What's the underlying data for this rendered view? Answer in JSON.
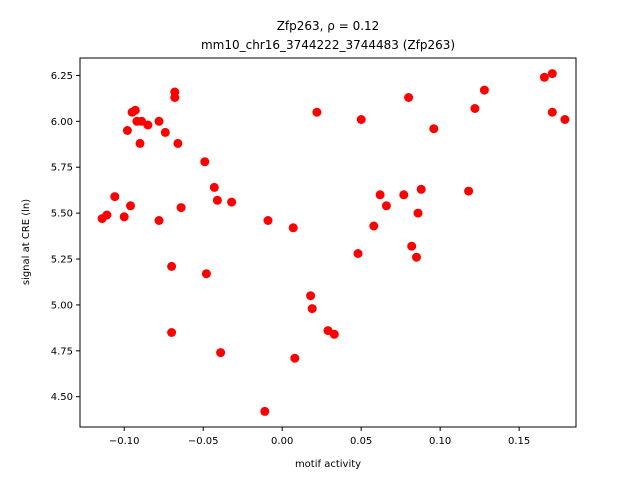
{
  "chart_data": {
    "type": "scatter",
    "title_line1": "Zfp263, ρ = 0.12",
    "title_line2": "mm10_chr16_3744222_3744483 (Zfp263)",
    "xlabel": "motif activity",
    "ylabel": "signal at CRE (ln)",
    "xlim": [
      -0.128,
      0.186
    ],
    "ylim": [
      4.335,
      6.345
    ],
    "xticks": [
      -0.1,
      -0.05,
      0.0,
      0.05,
      0.1,
      0.15
    ],
    "xtick_labels": [
      "−0.10",
      "−0.05",
      "0.00",
      "0.05",
      "0.10",
      "0.15"
    ],
    "yticks": [
      4.5,
      4.75,
      5.0,
      5.25,
      5.5,
      5.75,
      6.0,
      6.25
    ],
    "ytick_labels": [
      "4.50",
      "4.75",
      "5.00",
      "5.25",
      "5.50",
      "5.75",
      "6.00",
      "6.25"
    ],
    "grid": false,
    "marker_color": "#ff0000",
    "points": [
      {
        "x": -0.114,
        "y": 5.47
      },
      {
        "x": -0.111,
        "y": 5.49
      },
      {
        "x": -0.106,
        "y": 5.59
      },
      {
        "x": -0.1,
        "y": 5.48
      },
      {
        "x": -0.098,
        "y": 5.95
      },
      {
        "x": -0.096,
        "y": 5.54
      },
      {
        "x": -0.095,
        "y": 6.05
      },
      {
        "x": -0.093,
        "y": 6.06
      },
      {
        "x": -0.092,
        "y": 6.0
      },
      {
        "x": -0.09,
        "y": 5.88
      },
      {
        "x": -0.089,
        "y": 6.0
      },
      {
        "x": -0.085,
        "y": 5.98
      },
      {
        "x": -0.078,
        "y": 6.0
      },
      {
        "x": -0.078,
        "y": 5.46
      },
      {
        "x": -0.074,
        "y": 5.94
      },
      {
        "x": -0.07,
        "y": 5.21
      },
      {
        "x": -0.07,
        "y": 4.85
      },
      {
        "x": -0.068,
        "y": 6.16
      },
      {
        "x": -0.068,
        "y": 6.13
      },
      {
        "x": -0.066,
        "y": 5.88
      },
      {
        "x": -0.064,
        "y": 5.53
      },
      {
        "x": -0.049,
        "y": 5.78
      },
      {
        "x": -0.048,
        "y": 5.17
      },
      {
        "x": -0.043,
        "y": 5.64
      },
      {
        "x": -0.041,
        "y": 5.57
      },
      {
        "x": -0.039,
        "y": 4.74
      },
      {
        "x": -0.032,
        "y": 5.56
      },
      {
        "x": -0.011,
        "y": 4.42
      },
      {
        "x": -0.009,
        "y": 5.46
      },
      {
        "x": 0.007,
        "y": 5.42
      },
      {
        "x": 0.008,
        "y": 4.71
      },
      {
        "x": 0.018,
        "y": 5.05
      },
      {
        "x": 0.019,
        "y": 4.98
      },
      {
        "x": 0.022,
        "y": 6.05
      },
      {
        "x": 0.029,
        "y": 4.86
      },
      {
        "x": 0.033,
        "y": 4.84
      },
      {
        "x": 0.048,
        "y": 5.28
      },
      {
        "x": 0.05,
        "y": 6.01
      },
      {
        "x": 0.058,
        "y": 5.43
      },
      {
        "x": 0.062,
        "y": 5.6
      },
      {
        "x": 0.066,
        "y": 5.54
      },
      {
        "x": 0.077,
        "y": 5.6
      },
      {
        "x": 0.08,
        "y": 6.13
      },
      {
        "x": 0.082,
        "y": 5.32
      },
      {
        "x": 0.085,
        "y": 5.26
      },
      {
        "x": 0.086,
        "y": 5.5
      },
      {
        "x": 0.088,
        "y": 5.63
      },
      {
        "x": 0.096,
        "y": 5.96
      },
      {
        "x": 0.118,
        "y": 5.62
      },
      {
        "x": 0.122,
        "y": 6.07
      },
      {
        "x": 0.128,
        "y": 6.17
      },
      {
        "x": 0.166,
        "y": 6.24
      },
      {
        "x": 0.171,
        "y": 6.26
      },
      {
        "x": 0.171,
        "y": 6.05
      },
      {
        "x": 0.179,
        "y": 6.01
      }
    ]
  }
}
